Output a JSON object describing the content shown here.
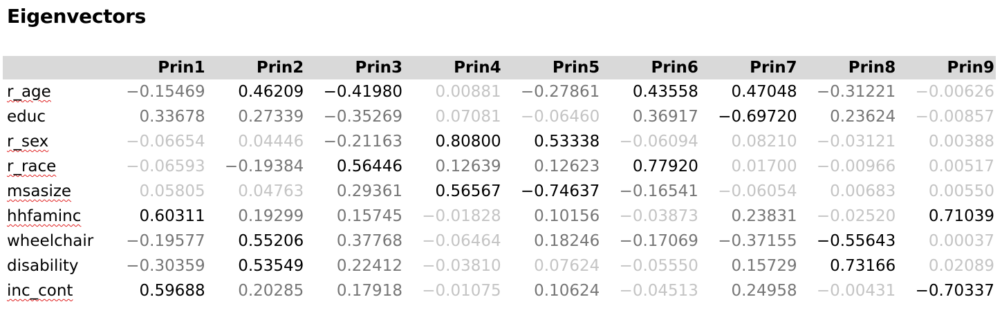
{
  "title": "Eigenvectors",
  "columns": [
    "Prin1",
    "Prin2",
    "Prin3",
    "Prin4",
    "Prin5",
    "Prin6",
    "Prin7",
    "Prin8",
    "Prin9"
  ],
  "rows": [
    {
      "label": "r_age",
      "spellcheck": true,
      "values": [
        "−0.15469",
        "0.46209",
        "−0.41980",
        "0.00881",
        "−0.27861",
        "0.43558",
        "0.47048",
        "−0.31221",
        "−0.00626"
      ]
    },
    {
      "label": "educ",
      "spellcheck": false,
      "values": [
        "0.33678",
        "0.27339",
        "−0.35269",
        "0.07081",
        "−0.06460",
        "0.36917",
        "−0.69720",
        "0.23624",
        "−0.00857"
      ]
    },
    {
      "label": "r_sex",
      "spellcheck": true,
      "values": [
        "−0.06654",
        "0.04446",
        "−0.21163",
        "0.80800",
        "0.53338",
        "−0.06094",
        "0.08210",
        "−0.03121",
        "0.00388"
      ]
    },
    {
      "label": "r_race",
      "spellcheck": true,
      "values": [
        "−0.06593",
        "−0.19384",
        "0.56446",
        "0.12639",
        "0.12623",
        "0.77920",
        "0.01700",
        "−0.00966",
        "0.00517"
      ]
    },
    {
      "label": "msasize",
      "spellcheck": true,
      "values": [
        "0.05805",
        "0.04763",
        "0.29361",
        "0.56567",
        "−0.74637",
        "−0.16541",
        "−0.06054",
        "0.00683",
        "0.00550"
      ]
    },
    {
      "label": "hhfaminc",
      "spellcheck": true,
      "values": [
        "0.60311",
        "0.19299",
        "0.15745",
        "−0.01828",
        "0.10156",
        "−0.03873",
        "0.23831",
        "−0.02520",
        "0.71039"
      ]
    },
    {
      "label": "wheelchair",
      "spellcheck": false,
      "values": [
        "−0.19577",
        "0.55206",
        "0.37768",
        "−0.06464",
        "0.18246",
        "−0.17069",
        "−0.37155",
        "−0.55643",
        "0.00037"
      ]
    },
    {
      "label": "disability",
      "spellcheck": false,
      "values": [
        "−0.30359",
        "0.53549",
        "0.22412",
        "−0.03810",
        "0.07624",
        "−0.05550",
        "0.15729",
        "0.73166",
        "0.02089"
      ]
    },
    {
      "label": "inc_cont",
      "spellcheck": true,
      "values": [
        "0.59688",
        "0.20285",
        "0.17918",
        "−0.01075",
        "0.10624",
        "−0.04513",
        "0.24958",
        "−0.00431",
        "−0.70337"
      ]
    }
  ],
  "shading_thresholds": {
    "strong": 0.4,
    "mid": 0.1
  },
  "colors": {
    "header_bg": "#d9d9d9",
    "strong": "#000000",
    "mid": "#767676",
    "faint": "#c4c4c4",
    "spellcheck_underline": "#e02020"
  }
}
